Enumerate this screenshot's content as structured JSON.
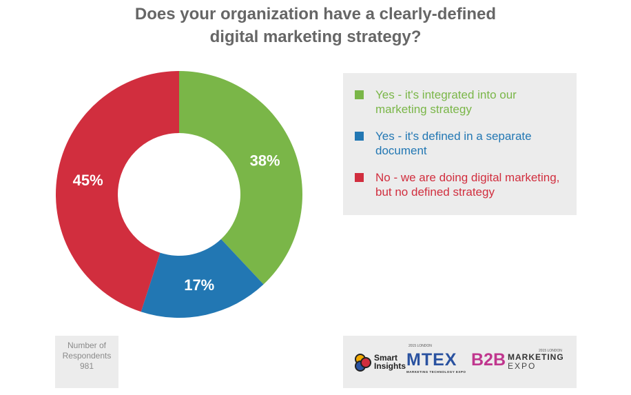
{
  "chart_data": {
    "type": "pie",
    "variant": "donut",
    "title": [
      "Does your organization have a clearly-defined",
      "digital marketing strategy?"
    ],
    "slices": [
      {
        "name": "Yes - it's integrated into our marketing strategy",
        "legend_lines": [
          "Yes - it's integrated into our",
          "marketing strategy"
        ],
        "value": 38,
        "label": "38%",
        "color": "#7ab648"
      },
      {
        "name": "Yes - it's defined in a separate document",
        "legend_lines": [
          "Yes - it's defined in a separate",
          "document"
        ],
        "value": 17,
        "label": "17%",
        "color": "#2277b3"
      },
      {
        "name": "No - we are doing digital marketing, but no defined strategy",
        "legend_lines": [
          "No - we are doing digital marketing,",
          "but no defined strategy"
        ],
        "value": 45,
        "label": "45%",
        "color": "#d12e3e"
      }
    ],
    "legend_placement": "right"
  },
  "respondents": {
    "lines": [
      "Number of",
      "Respondents",
      "981"
    ]
  },
  "logos": {
    "smart_insights": {
      "line1": "Smart",
      "line2": "Insights"
    },
    "mtex": {
      "name": "MTEX",
      "tag": "2015 LONDON",
      "subtitle": "MARKETING TECHNOLOGY EXPO"
    },
    "b2b": {
      "name": "B2B",
      "tag": "2015 LONDON",
      "word1": "MARKETING",
      "word2": "EXPO"
    }
  }
}
